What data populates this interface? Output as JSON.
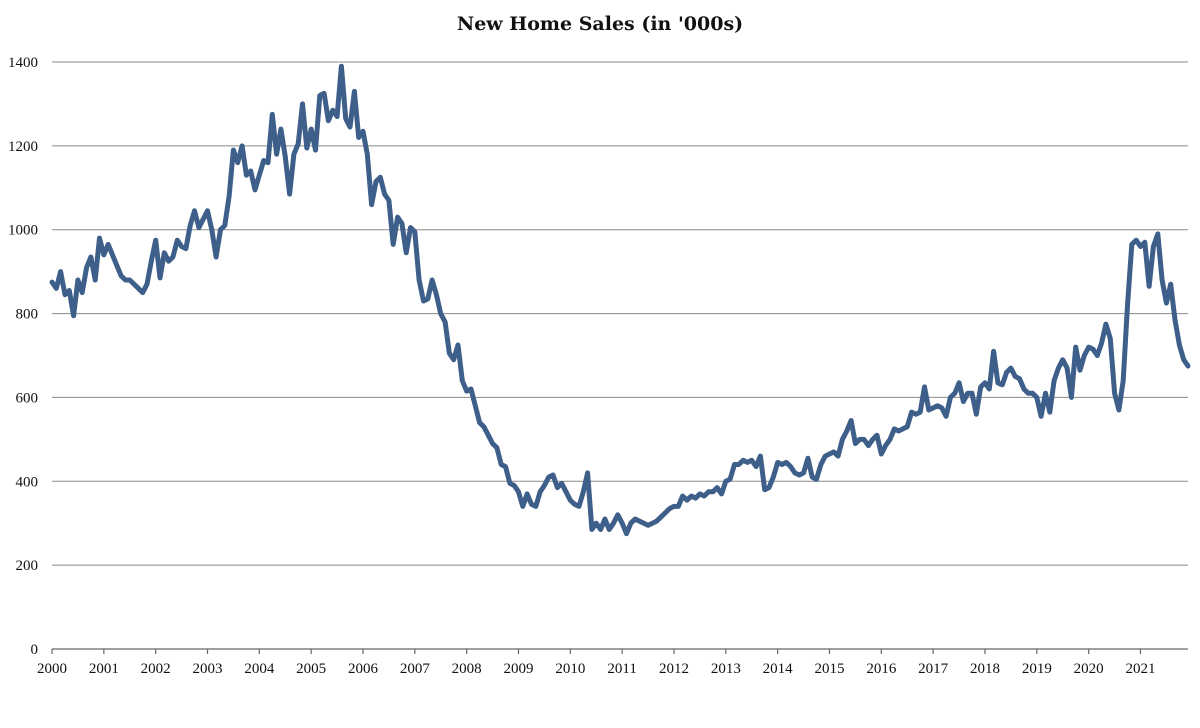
{
  "chart_data": {
    "type": "line",
    "title": "New Home Sales (in '000s)",
    "xlabel": "",
    "ylabel": "",
    "ylim": [
      0,
      1400
    ],
    "yticks": [
      0,
      200,
      400,
      600,
      800,
      1000,
      1200,
      1400
    ],
    "xlim": [
      "2000-01",
      "2021-06"
    ],
    "xticks": [
      "2000",
      "2001",
      "2002",
      "2003",
      "2004",
      "2005",
      "2006",
      "2007",
      "2008",
      "2009",
      "2010",
      "2011",
      "2012",
      "2013",
      "2014",
      "2015",
      "2016",
      "2017",
      "2018",
      "2019",
      "2020",
      "2021"
    ],
    "grid": "horizontal",
    "legend": "none",
    "series": [
      {
        "color": "#3e5f8a",
        "points": [
          [
            "2000-01",
            875
          ],
          [
            "2000-02",
            860
          ],
          [
            "2000-03",
            900
          ],
          [
            "2000-04",
            845
          ],
          [
            "2000-05",
            855
          ],
          [
            "2000-06",
            795
          ],
          [
            "2000-07",
            880
          ],
          [
            "2000-08",
            850
          ],
          [
            "2000-09",
            910
          ],
          [
            "2000-10",
            935
          ],
          [
            "2000-11",
            880
          ],
          [
            "2000-12",
            980
          ],
          [
            "2001-01",
            940
          ],
          [
            "2001-02",
            965
          ],
          [
            "2001-03",
            940
          ],
          [
            "2001-04",
            915
          ],
          [
            "2001-05",
            890
          ],
          [
            "2001-06",
            880
          ],
          [
            "2001-07",
            880
          ],
          [
            "2001-08",
            870
          ],
          [
            "2001-09",
            860
          ],
          [
            "2001-10",
            850
          ],
          [
            "2001-11",
            870
          ],
          [
            "2001-12",
            925
          ],
          [
            "2002-01",
            975
          ],
          [
            "2002-02",
            885
          ],
          [
            "2002-03",
            945
          ],
          [
            "2002-04",
            925
          ],
          [
            "2002-05",
            935
          ],
          [
            "2002-06",
            975
          ],
          [
            "2002-07",
            960
          ],
          [
            "2002-08",
            955
          ],
          [
            "2002-09",
            1010
          ],
          [
            "2002-10",
            1045
          ],
          [
            "2002-11",
            1005
          ],
          [
            "2002-12",
            1025
          ],
          [
            "2003-01",
            1045
          ],
          [
            "2003-02",
            1000
          ],
          [
            "2003-03",
            935
          ],
          [
            "2003-04",
            1000
          ],
          [
            "2003-05",
            1010
          ],
          [
            "2003-06",
            1080
          ],
          [
            "2003-07",
            1190
          ],
          [
            "2003-08",
            1160
          ],
          [
            "2003-09",
            1200
          ],
          [
            "2003-10",
            1130
          ],
          [
            "2003-11",
            1140
          ],
          [
            "2003-12",
            1095
          ],
          [
            "2004-01",
            1130
          ],
          [
            "2004-02",
            1165
          ],
          [
            "2004-03",
            1160
          ],
          [
            "2004-04",
            1275
          ],
          [
            "2004-05",
            1180
          ],
          [
            "2004-06",
            1240
          ],
          [
            "2004-07",
            1175
          ],
          [
            "2004-08",
            1085
          ],
          [
            "2004-09",
            1180
          ],
          [
            "2004-10",
            1205
          ],
          [
            "2004-11",
            1300
          ],
          [
            "2004-12",
            1195
          ],
          [
            "2005-01",
            1240
          ],
          [
            "2005-02",
            1190
          ],
          [
            "2005-03",
            1320
          ],
          [
            "2005-04",
            1325
          ],
          [
            "2005-05",
            1260
          ],
          [
            "2005-06",
            1285
          ],
          [
            "2005-07",
            1270
          ],
          [
            "2005-08",
            1390
          ],
          [
            "2005-09",
            1265
          ],
          [
            "2005-10",
            1245
          ],
          [
            "2005-11",
            1330
          ],
          [
            "2005-12",
            1220
          ],
          [
            "2006-01",
            1235
          ],
          [
            "2006-02",
            1180
          ],
          [
            "2006-03",
            1060
          ],
          [
            "2006-04",
            1115
          ],
          [
            "2006-05",
            1125
          ],
          [
            "2006-06",
            1085
          ],
          [
            "2006-07",
            1070
          ],
          [
            "2006-08",
            965
          ],
          [
            "2006-09",
            1030
          ],
          [
            "2006-10",
            1015
          ],
          [
            "2006-11",
            945
          ],
          [
            "2006-12",
            1005
          ],
          [
            "2007-01",
            995
          ],
          [
            "2007-02",
            880
          ],
          [
            "2007-03",
            830
          ],
          [
            "2007-04",
            835
          ],
          [
            "2007-05",
            880
          ],
          [
            "2007-06",
            845
          ],
          [
            "2007-07",
            800
          ],
          [
            "2007-08",
            780
          ],
          [
            "2007-09",
            705
          ],
          [
            "2007-10",
            690
          ],
          [
            "2007-11",
            725
          ],
          [
            "2007-12",
            640
          ],
          [
            "2008-01",
            615
          ],
          [
            "2008-02",
            620
          ],
          [
            "2008-03",
            580
          ],
          [
            "2008-04",
            540
          ],
          [
            "2008-05",
            530
          ],
          [
            "2008-06",
            510
          ],
          [
            "2008-07",
            490
          ],
          [
            "2008-08",
            480
          ],
          [
            "2008-09",
            440
          ],
          [
            "2008-10",
            435
          ],
          [
            "2008-11",
            395
          ],
          [
            "2008-12",
            390
          ],
          [
            "2009-01",
            375
          ],
          [
            "2009-02",
            340
          ],
          [
            "2009-03",
            370
          ],
          [
            "2009-04",
            345
          ],
          [
            "2009-05",
            340
          ],
          [
            "2009-06",
            375
          ],
          [
            "2009-07",
            390
          ],
          [
            "2009-08",
            410
          ],
          [
            "2009-09",
            415
          ],
          [
            "2009-10",
            385
          ],
          [
            "2009-11",
            395
          ],
          [
            "2009-12",
            375
          ],
          [
            "2010-01",
            355
          ],
          [
            "2010-02",
            345
          ],
          [
            "2010-03",
            340
          ],
          [
            "2010-04",
            375
          ],
          [
            "2010-05",
            420
          ],
          [
            "2010-06",
            285
          ],
          [
            "2010-07",
            300
          ],
          [
            "2010-08",
            285
          ],
          [
            "2010-09",
            310
          ],
          [
            "2010-10",
            285
          ],
          [
            "2010-11",
            300
          ],
          [
            "2010-12",
            320
          ],
          [
            "2011-01",
            300
          ],
          [
            "2011-02",
            275
          ],
          [
            "2011-03",
            300
          ],
          [
            "2011-04",
            310
          ],
          [
            "2011-05",
            305
          ],
          [
            "2011-06",
            300
          ],
          [
            "2011-07",
            295
          ],
          [
            "2011-08",
            300
          ],
          [
            "2011-09",
            305
          ],
          [
            "2011-10",
            315
          ],
          [
            "2011-11",
            325
          ],
          [
            "2011-12",
            335
          ],
          [
            "2012-01",
            340
          ],
          [
            "2012-02",
            340
          ],
          [
            "2012-03",
            365
          ],
          [
            "2012-04",
            355
          ],
          [
            "2012-05",
            365
          ],
          [
            "2012-06",
            360
          ],
          [
            "2012-07",
            370
          ],
          [
            "2012-08",
            365
          ],
          [
            "2012-09",
            375
          ],
          [
            "2012-10",
            375
          ],
          [
            "2012-11",
            385
          ],
          [
            "2012-12",
            370
          ],
          [
            "2013-01",
            400
          ],
          [
            "2013-02",
            405
          ],
          [
            "2013-03",
            440
          ],
          [
            "2013-04",
            440
          ],
          [
            "2013-05",
            450
          ],
          [
            "2013-06",
            445
          ],
          [
            "2013-07",
            450
          ],
          [
            "2013-08",
            435
          ],
          [
            "2013-09",
            460
          ],
          [
            "2013-10",
            380
          ],
          [
            "2013-11",
            385
          ],
          [
            "2013-12",
            410
          ],
          [
            "2014-01",
            445
          ],
          [
            "2014-02",
            440
          ],
          [
            "2014-03",
            445
          ],
          [
            "2014-04",
            435
          ],
          [
            "2014-05",
            420
          ],
          [
            "2014-06",
            415
          ],
          [
            "2014-07",
            420
          ],
          [
            "2014-08",
            455
          ],
          [
            "2014-09",
            410
          ],
          [
            "2014-10",
            405
          ],
          [
            "2014-11",
            440
          ],
          [
            "2014-12",
            460
          ],
          [
            "2015-01",
            465
          ],
          [
            "2015-02",
            470
          ],
          [
            "2015-03",
            460
          ],
          [
            "2015-04",
            500
          ],
          [
            "2015-05",
            520
          ],
          [
            "2015-06",
            545
          ],
          [
            "2015-07",
            490
          ],
          [
            "2015-08",
            500
          ],
          [
            "2015-09",
            500
          ],
          [
            "2015-10",
            485
          ],
          [
            "2015-11",
            500
          ],
          [
            "2015-12",
            510
          ],
          [
            "2016-01",
            465
          ],
          [
            "2016-02",
            485
          ],
          [
            "2016-03",
            500
          ],
          [
            "2016-04",
            525
          ],
          [
            "2016-05",
            520
          ],
          [
            "2016-06",
            525
          ],
          [
            "2016-07",
            530
          ],
          [
            "2016-08",
            565
          ],
          [
            "2016-09",
            560
          ],
          [
            "2016-10",
            565
          ],
          [
            "2016-11",
            625
          ],
          [
            "2016-12",
            570
          ],
          [
            "2017-01",
            575
          ],
          [
            "2017-02",
            580
          ],
          [
            "2017-03",
            575
          ],
          [
            "2017-04",
            555
          ],
          [
            "2017-05",
            600
          ],
          [
            "2017-06",
            610
          ],
          [
            "2017-07",
            635
          ],
          [
            "2017-08",
            590
          ],
          [
            "2017-09",
            610
          ],
          [
            "2017-10",
            610
          ],
          [
            "2017-11",
            560
          ],
          [
            "2017-12",
            625
          ],
          [
            "2018-01",
            635
          ],
          [
            "2018-02",
            620
          ],
          [
            "2018-03",
            710
          ],
          [
            "2018-04",
            635
          ],
          [
            "2018-05",
            630
          ],
          [
            "2018-06",
            660
          ],
          [
            "2018-07",
            670
          ],
          [
            "2018-08",
            650
          ],
          [
            "2018-09",
            645
          ],
          [
            "2018-10",
            620
          ],
          [
            "2018-11",
            610
          ],
          [
            "2018-12",
            610
          ],
          [
            "2019-01",
            600
          ],
          [
            "2019-02",
            555
          ],
          [
            "2019-03",
            610
          ],
          [
            "2019-04",
            565
          ],
          [
            "2019-05",
            640
          ],
          [
            "2019-06",
            670
          ],
          [
            "2019-07",
            690
          ],
          [
            "2019-08",
            670
          ],
          [
            "2019-09",
            600
          ],
          [
            "2019-10",
            720
          ],
          [
            "2019-11",
            665
          ],
          [
            "2019-12",
            700
          ],
          [
            "2020-01",
            720
          ],
          [
            "2020-02",
            715
          ],
          [
            "2020-03",
            700
          ],
          [
            "2020-04",
            730
          ],
          [
            "2020-05",
            775
          ],
          [
            "2020-06",
            740
          ],
          [
            "2020-07",
            610
          ],
          [
            "2020-08",
            570
          ],
          [
            "2020-09",
            640
          ],
          [
            "2020-10",
            820
          ],
          [
            "2020-11",
            965
          ],
          [
            "2020-12",
            975
          ],
          [
            "2021-01",
            960
          ],
          [
            "2021-02",
            970
          ],
          [
            "2021-03",
            865
          ],
          [
            "2021-04",
            960
          ],
          [
            "2021-05",
            990
          ],
          [
            "2021-06",
            880
          ],
          [
            "2021-07",
            825
          ],
          [
            "2021-08",
            870
          ],
          [
            "2021-09",
            785
          ],
          [
            "2021-10",
            725
          ],
          [
            "2021-11",
            690
          ],
          [
            "2021-12",
            675
          ]
        ]
      }
    ]
  }
}
